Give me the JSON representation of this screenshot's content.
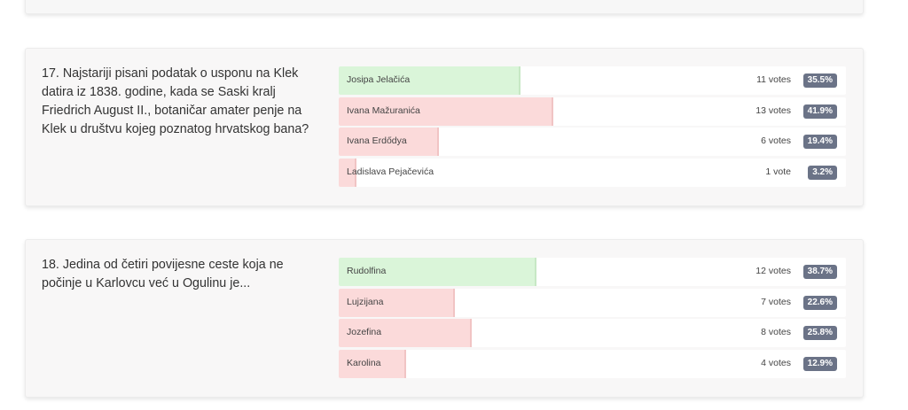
{
  "polls": [
    {
      "question": "17. Najstariji pisani podatak o usponu na Klek datira iz 1838. godine, kada se Saski kralj Friedrich August II., botaničar amater penje na Klek u društvu kojeg poznatog hrvatskog bana?",
      "answers": [
        {
          "label": "Josipa Jelačića",
          "votes": "11 votes",
          "percent": "35.5%",
          "share": 0.355,
          "status": "correct"
        },
        {
          "label": "Ivana Mažuranića",
          "votes": "13 votes",
          "percent": "41.9%",
          "share": 0.419,
          "status": "wrong"
        },
        {
          "label": "Ivana Erdődya",
          "votes": "6 votes",
          "percent": "19.4%",
          "share": 0.194,
          "status": "wrong"
        },
        {
          "label": "Ladislava Pejačevića",
          "votes": "1 vote",
          "percent": "3.2%",
          "share": 0.032,
          "status": "wrong"
        }
      ]
    },
    {
      "question": "18. Jedina od četiri povijesne ceste koja ne počinje u Karlovcu već u Ogulinu je...",
      "answers": [
        {
          "label": "Rudolfina",
          "votes": "12 votes",
          "percent": "38.7%",
          "share": 0.387,
          "status": "correct"
        },
        {
          "label": "Lujzijana",
          "votes": "7 votes",
          "percent": "22.6%",
          "share": 0.226,
          "status": "wrong"
        },
        {
          "label": "Jozefina",
          "votes": "8 votes",
          "percent": "25.8%",
          "share": 0.258,
          "status": "wrong"
        },
        {
          "label": "Karolina",
          "votes": "4 votes",
          "percent": "12.9%",
          "share": 0.129,
          "status": "wrong"
        }
      ]
    }
  ],
  "colors": {
    "correct_fill": "#daf5d9",
    "wrong_fill": "#fbdada",
    "percent_badge": "#6b7387"
  }
}
